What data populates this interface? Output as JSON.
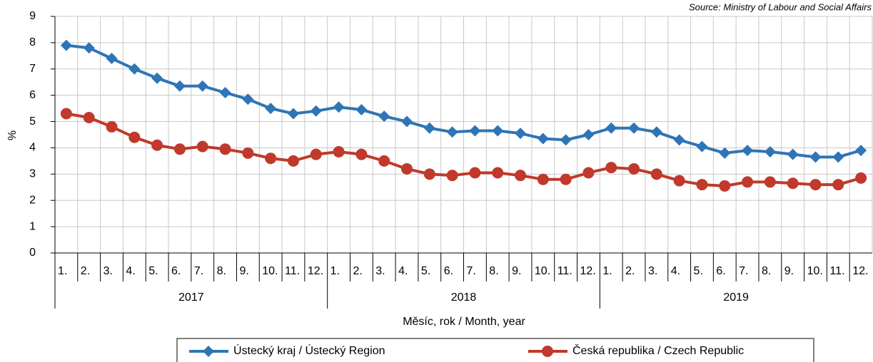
{
  "chart_data": {
    "type": "line",
    "source": "Source: Ministry of Labour and Social Affairs",
    "y_label": "%",
    "x_label": "Měsíc, rok / Month, year",
    "categories": [
      "1.",
      "2.",
      "3.",
      "4.",
      "5.",
      "6.",
      "7.",
      "8.",
      "9.",
      "10.",
      "11.",
      "12.",
      "1.",
      "2.",
      "3.",
      "4.",
      "5.",
      "6.",
      "7.",
      "8.",
      "9.",
      "10.",
      "11.",
      "12.",
      "1.",
      "2.",
      "3.",
      "4.",
      "5.",
      "6.",
      "7.",
      "8.",
      "9.",
      "10.",
      "11.",
      "12."
    ],
    "groups": [
      "2017",
      "2018",
      "2019"
    ],
    "ylim": [
      0,
      9
    ],
    "yticks": [
      0,
      1,
      2,
      3,
      4,
      5,
      6,
      7,
      8,
      9
    ],
    "grid": true,
    "series": [
      {
        "name": "Ústecký kraj / Ústecký Region",
        "color": "#2e75b6",
        "marker": "diamond",
        "values": [
          7.9,
          7.8,
          7.4,
          7.0,
          6.65,
          6.35,
          6.35,
          6.1,
          5.85,
          5.5,
          5.3,
          5.4,
          5.55,
          5.45,
          5.2,
          5.0,
          4.75,
          4.6,
          4.65,
          4.65,
          4.55,
          4.35,
          4.3,
          4.5,
          4.75,
          4.75,
          4.6,
          4.3,
          4.05,
          3.8,
          3.9,
          3.85,
          3.75,
          3.65,
          3.65,
          3.9
        ]
      },
      {
        "name": "Česká republika / Czech Republic",
        "color": "#c0392b",
        "marker": "circle",
        "values": [
          5.3,
          5.15,
          4.8,
          4.4,
          4.1,
          3.95,
          4.05,
          3.95,
          3.8,
          3.6,
          3.5,
          3.75,
          3.85,
          3.75,
          3.5,
          3.2,
          3.0,
          2.95,
          3.05,
          3.05,
          2.95,
          2.8,
          2.8,
          3.05,
          3.25,
          3.2,
          3.0,
          2.75,
          2.6,
          2.55,
          2.7,
          2.7,
          2.65,
          2.6,
          2.6,
          2.85
        ]
      }
    ]
  }
}
